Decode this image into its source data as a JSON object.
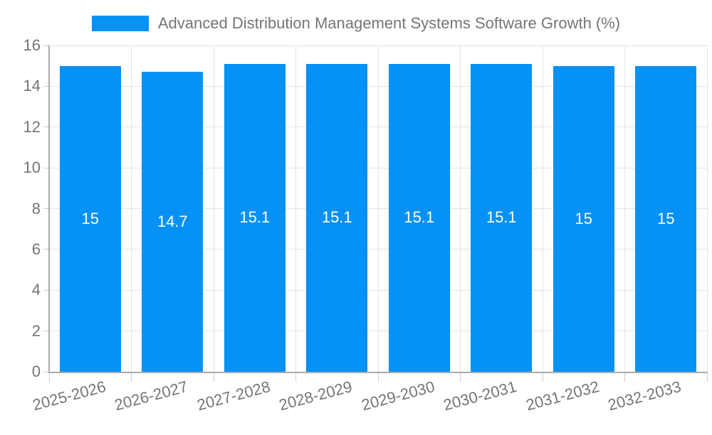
{
  "chart_data": {
    "type": "bar",
    "title": "Advanced Distribution Management Systems Software Growth (%)",
    "categories": [
      "2025-2026",
      "2026-2027",
      "2027-2028",
      "2028-2029",
      "2029-2030",
      "2030-2031",
      "2031-2032",
      "2032-2033"
    ],
    "series": [
      {
        "name": "Advanced Distribution Management Systems Software Growth (%)",
        "values": [
          15,
          14.7,
          15.1,
          15.1,
          15.1,
          15.1,
          15,
          15
        ]
      }
    ],
    "bar_labels": [
      "15",
      "14.7",
      "15.1",
      "15.1",
      "15.1",
      "15.1",
      "15",
      "15"
    ],
    "xlabel": "",
    "ylabel": "",
    "ylim": [
      0,
      16
    ],
    "yticks": [
      0,
      2,
      4,
      6,
      8,
      10,
      12,
      14,
      16
    ],
    "grid": true,
    "legend_position": "top",
    "colors": {
      "bar": "#0591F5",
      "text": "#757575",
      "gridline": "#e4e4e4",
      "tick": "#cccccc",
      "axis_line": "#ababab",
      "bar_label": "#ffffff"
    }
  }
}
